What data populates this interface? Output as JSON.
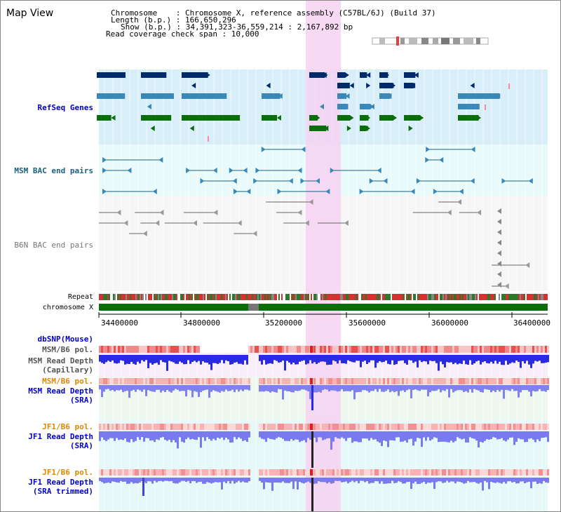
{
  "title": "Map View",
  "header": {
    "chromosome_line": "Chromosome    : Chromosome X, reference assembly (C57BL/6J) (Build 37)",
    "length_line": "Length (b.p.) : 166,650,296",
    "show_line": "Show (b.p.) : 34,391,323-36,559,214 : 2,167,892 bp",
    "coverage_line": "Read coverage check span : 10,000"
  },
  "tracks": {
    "refseq": "RefSeq Genes",
    "msm_bac": "MSM BAC end pairs",
    "b6n_bac": "B6N BAC end pairs",
    "repeat": "Repeat",
    "chromosome": "chromosome X",
    "dbsnp": "dbSNP(Mouse)",
    "msm_pol_1": "MSM/B6 pol.",
    "msm_depth_cap_1": "MSM Read Depth",
    "msm_depth_cap_2": "(Capillary)",
    "msm_pol_2": "MSM/B6 pol.",
    "msm_depth_sra_1": "MSM Read Depth",
    "msm_depth_sra_2": "(SRA)",
    "jf1_pol_1": "JF1/B6 pol.",
    "jf1_depth_sra_1": "JF1 Read Depth",
    "jf1_depth_sra_2": "(SRA)",
    "jf1_pol_2": "JF1/B6 pol.",
    "jf1_depth_trim_1": "JF1 Read Depth",
    "jf1_depth_trim_2": "(SRA trimmed)"
  },
  "axis": {
    "ticks": [
      "34400000",
      "34800000",
      "35200000",
      "35600000",
      "36000000",
      "36400000"
    ]
  },
  "colors": {
    "navy": "#002a6a",
    "teal": "#3a88b8",
    "green": "#0a6e0a",
    "highlight": "#f6d2f2",
    "label_blue": "#0000cc",
    "label_teal": "#1a6080",
    "label_orange": "#dd8800",
    "depth_blue": "#2a2ae0",
    "depth_light": "#8080f0"
  }
}
